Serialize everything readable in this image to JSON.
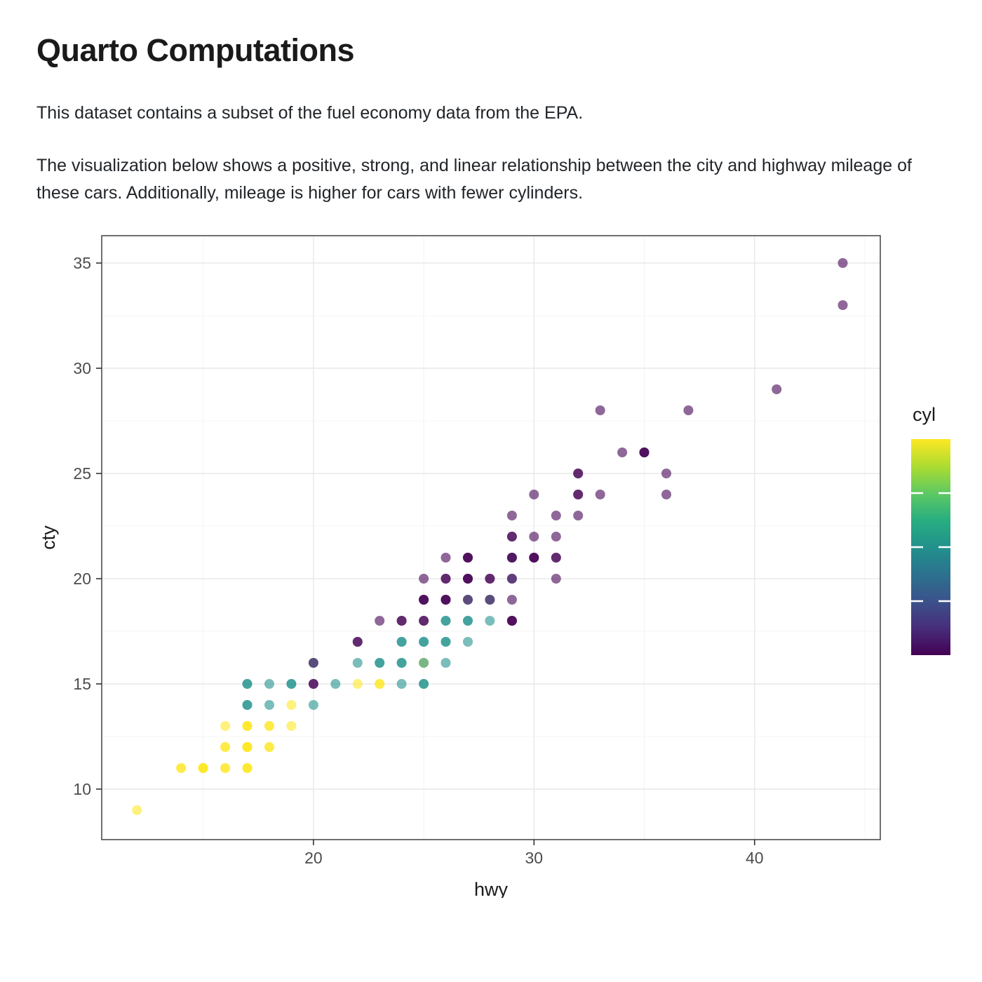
{
  "document": {
    "title": "Quarto Computations",
    "paragraphs": [
      "This dataset contains a subset of the fuel economy data from the EPA.",
      "The visualization below shows a positive, strong, and linear relationship between the city and highway mileage of these cars. Additionally, mileage is higher for cars with fewer cylinders."
    ]
  },
  "chart_data": {
    "type": "scatter",
    "title": "",
    "xlabel": "hwy",
    "ylabel": "cty",
    "xlim": [
      10.4,
      45.7
    ],
    "ylim": [
      7.6,
      36.3
    ],
    "x_ticks": [
      20,
      30,
      40
    ],
    "y_ticks": [
      10,
      15,
      20,
      25,
      30,
      35
    ],
    "grid": true,
    "point_alpha": 0.6,
    "point_radius": 7,
    "panel_border_color": "#4d4d4d",
    "grid_major_color": "#e8e8e8",
    "grid_minor_color": "#f4f4f4",
    "axis_text_color": "#4d4d4d",
    "axis_title_color": "#1a1a1a",
    "legend": {
      "title": "cyl",
      "type": "colorbar",
      "min": 4,
      "max": 8,
      "tick_values": [
        5,
        6,
        7
      ],
      "gradient_stops": [
        "#fde725",
        "#addc30",
        "#5ec962",
        "#28ae80",
        "#21918c",
        "#2c728e",
        "#3b528b",
        "#472d7b",
        "#440154"
      ]
    },
    "cyl_colors": {
      "4": "#440154",
      "5": "#3b528b",
      "6": "#21918c",
      "8": "#fde725"
    },
    "points_format": [
      "hwy",
      "cty",
      "cyl",
      "n_overlapping"
    ],
    "points": [
      [
        12,
        9,
        8,
        1
      ],
      [
        14,
        11,
        8,
        2
      ],
      [
        15,
        11,
        8,
        4
      ],
      [
        16,
        11,
        8,
        2
      ],
      [
        17,
        11,
        8,
        3
      ],
      [
        16,
        12,
        8,
        2
      ],
      [
        17,
        12,
        8,
        4
      ],
      [
        18,
        12,
        8,
        2
      ],
      [
        16,
        13,
        8,
        1
      ],
      [
        17,
        13,
        8,
        3
      ],
      [
        18,
        13,
        8,
        2
      ],
      [
        19,
        13,
        8,
        1
      ],
      [
        19,
        14,
        8,
        1
      ],
      [
        22,
        15,
        8,
        1
      ],
      [
        23,
        15,
        8,
        2
      ],
      [
        25,
        16,
        8,
        1
      ],
      [
        17,
        14,
        6,
        2
      ],
      [
        18,
        14,
        6,
        1
      ],
      [
        20,
        14,
        6,
        1
      ],
      [
        17,
        15,
        6,
        2
      ],
      [
        18,
        15,
        6,
        1
      ],
      [
        19,
        15,
        6,
        2
      ],
      [
        21,
        15,
        6,
        1
      ],
      [
        24,
        15,
        6,
        1
      ],
      [
        25,
        15,
        6,
        2
      ],
      [
        20,
        16,
        6,
        1
      ],
      [
        22,
        16,
        6,
        1
      ],
      [
        23,
        16,
        6,
        2
      ],
      [
        24,
        16,
        6,
        2
      ],
      [
        25,
        16,
        6,
        1
      ],
      [
        26,
        16,
        6,
        1
      ],
      [
        24,
        17,
        6,
        2
      ],
      [
        25,
        17,
        6,
        2
      ],
      [
        26,
        17,
        6,
        2
      ],
      [
        27,
        17,
        6,
        1
      ],
      [
        26,
        18,
        6,
        2
      ],
      [
        27,
        18,
        6,
        2
      ],
      [
        28,
        18,
        6,
        1
      ],
      [
        27,
        19,
        6,
        1
      ],
      [
        28,
        19,
        6,
        1
      ],
      [
        29,
        20,
        5,
        1
      ],
      [
        29,
        21,
        5,
        1
      ],
      [
        20,
        15,
        4,
        2
      ],
      [
        20,
        16,
        4,
        1
      ],
      [
        22,
        17,
        4,
        2
      ],
      [
        23,
        18,
        4,
        1
      ],
      [
        24,
        18,
        4,
        2
      ],
      [
        25,
        18,
        4,
        2
      ],
      [
        29,
        18,
        4,
        3
      ],
      [
        25,
        19,
        4,
        3
      ],
      [
        26,
        19,
        4,
        3
      ],
      [
        27,
        19,
        4,
        1
      ],
      [
        28,
        19,
        4,
        1
      ],
      [
        29,
        19,
        4,
        1
      ],
      [
        25,
        20,
        4,
        1
      ],
      [
        26,
        20,
        4,
        2
      ],
      [
        27,
        20,
        4,
        3
      ],
      [
        28,
        20,
        4,
        2
      ],
      [
        29,
        20,
        4,
        1
      ],
      [
        31,
        20,
        4,
        1
      ],
      [
        26,
        21,
        4,
        1
      ],
      [
        27,
        21,
        4,
        3
      ],
      [
        29,
        21,
        4,
        2
      ],
      [
        30,
        21,
        4,
        3
      ],
      [
        31,
        21,
        4,
        2
      ],
      [
        29,
        22,
        4,
        2
      ],
      [
        30,
        22,
        4,
        1
      ],
      [
        31,
        22,
        4,
        1
      ],
      [
        29,
        23,
        4,
        1
      ],
      [
        31,
        23,
        4,
        1
      ],
      [
        32,
        23,
        4,
        1
      ],
      [
        30,
        24,
        4,
        1
      ],
      [
        32,
        24,
        4,
        2
      ],
      [
        33,
        24,
        4,
        1
      ],
      [
        36,
        24,
        4,
        1
      ],
      [
        32,
        25,
        4,
        2
      ],
      [
        36,
        25,
        4,
        1
      ],
      [
        34,
        26,
        4,
        1
      ],
      [
        35,
        26,
        4,
        3
      ],
      [
        33,
        28,
        4,
        1
      ],
      [
        37,
        28,
        4,
        1
      ],
      [
        41,
        29,
        4,
        1
      ],
      [
        44,
        33,
        4,
        1
      ],
      [
        44,
        35,
        4,
        1
      ]
    ]
  }
}
